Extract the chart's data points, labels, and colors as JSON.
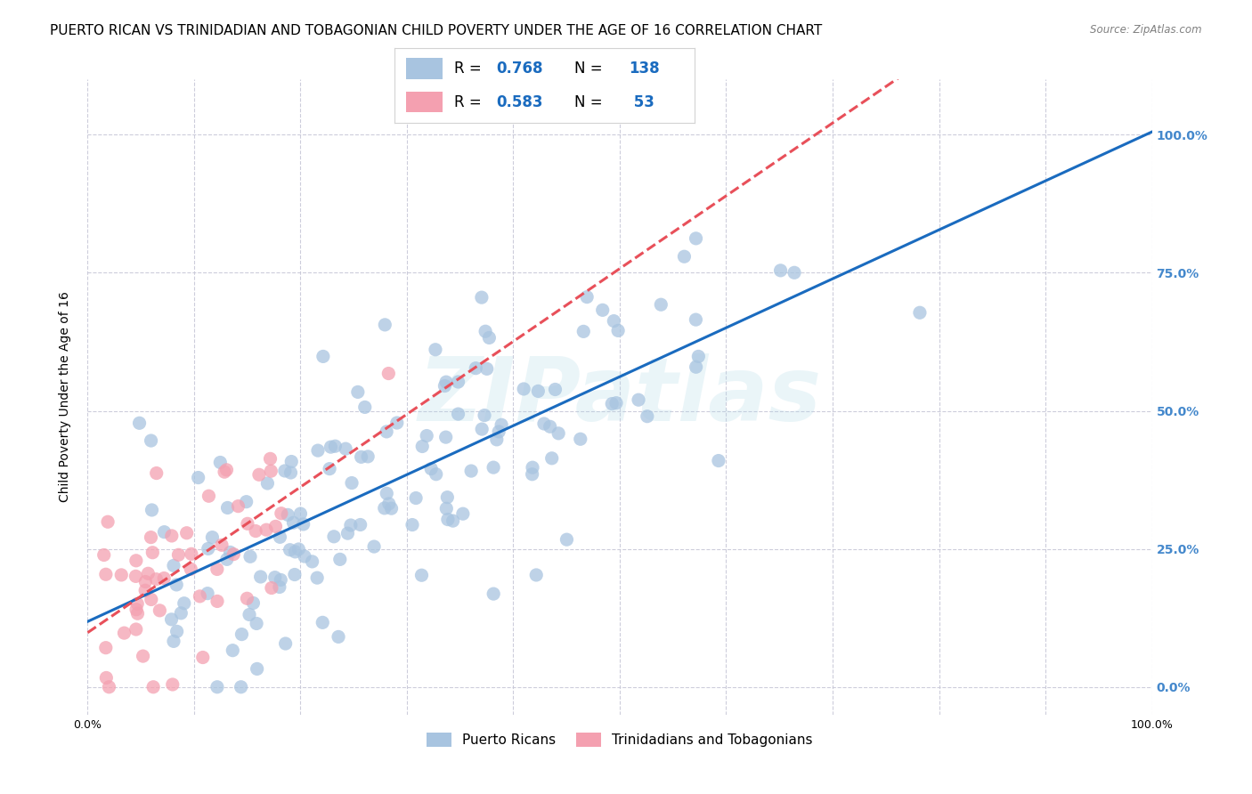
{
  "title": "PUERTO RICAN VS TRINIDADIAN AND TOBAGONIAN CHILD POVERTY UNDER THE AGE OF 16 CORRELATION CHART",
  "source": "Source: ZipAtlas.com",
  "xlabel": "",
  "ylabel": "Child Poverty Under the Age of 16",
  "xlim": [
    0,
    1
  ],
  "ylim": [
    -0.05,
    1.1
  ],
  "watermark": "ZIPatlas",
  "legend_pr_R": "0.768",
  "legend_pr_N": "138",
  "legend_tt_R": "0.583",
  "legend_tt_N": "53",
  "pr_color": "#a8c4e0",
  "tt_color": "#f4a0b0",
  "pr_line_color": "#1a6bbf",
  "tt_line_color": "#e8505a",
  "background_color": "#ffffff",
  "grid_color": "#c8c8d8",
  "right_axis_color": "#4488cc",
  "title_fontsize": 11,
  "axis_label_fontsize": 10,
  "tick_label_fontsize": 9,
  "pr_seed": 42,
  "tt_seed": 7,
  "pr_n": 138,
  "tt_n": 53,
  "pr_r": 0.768,
  "tt_r": 0.583
}
